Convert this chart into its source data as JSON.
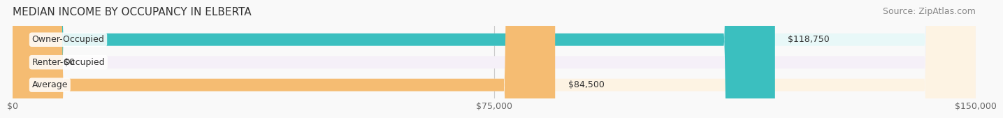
{
  "title": "MEDIAN INCOME BY OCCUPANCY IN ELBERTA",
  "source": "Source: ZipAtlas.com",
  "categories": [
    "Owner-Occupied",
    "Renter-Occupied",
    "Average"
  ],
  "values": [
    118750,
    0,
    84500
  ],
  "bar_colors": [
    "#3bbfbf",
    "#c9a8d4",
    "#f5bc72"
  ],
  "bar_bg_colors": [
    "#e8f8f8",
    "#f5f0f8",
    "#fdf3e3"
  ],
  "value_labels": [
    "$118,750",
    "$0",
    "$84,500"
  ],
  "xlim": [
    0,
    150000
  ],
  "xticks": [
    0,
    75000,
    150000
  ],
  "xticklabels": [
    "$0",
    "$75,000",
    "$150,000"
  ],
  "title_fontsize": 11,
  "source_fontsize": 9,
  "label_fontsize": 9,
  "bar_height": 0.55,
  "background_color": "#f9f9f9"
}
